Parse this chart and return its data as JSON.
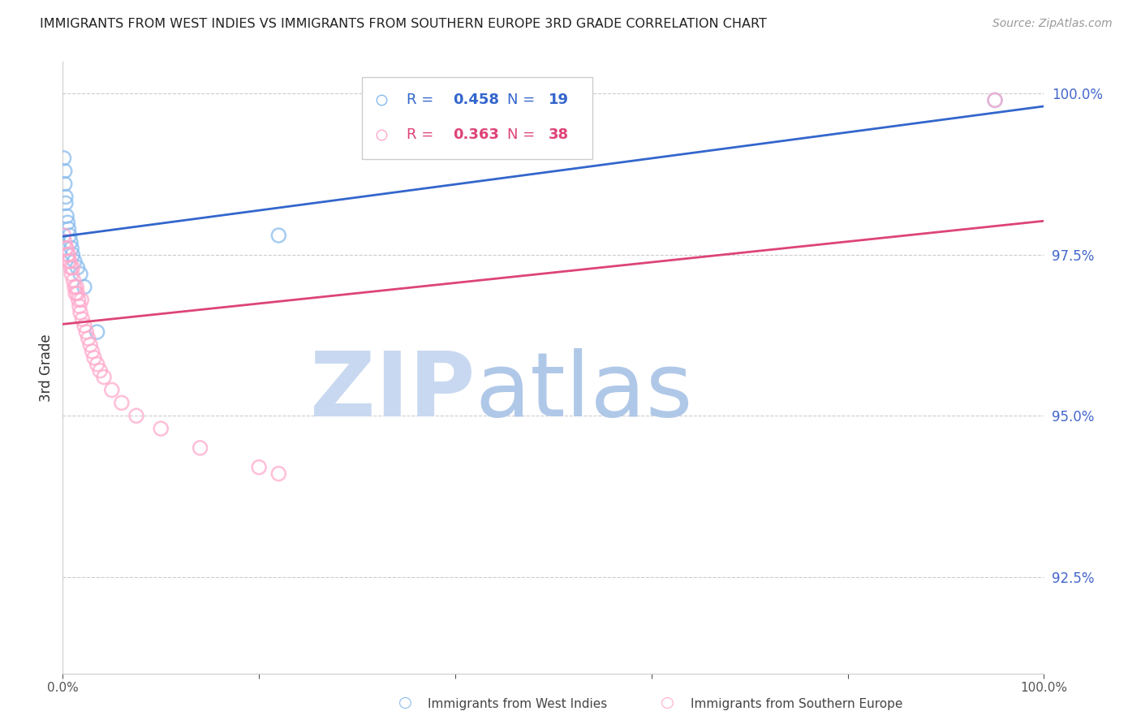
{
  "title": "IMMIGRANTS FROM WEST INDIES VS IMMIGRANTS FROM SOUTHERN EUROPE 3RD GRADE CORRELATION CHART",
  "source": "Source: ZipAtlas.com",
  "ylabel": "3rd Grade",
  "legend_blue_label": "Immigrants from West Indies",
  "legend_pink_label": "Immigrants from Southern Europe",
  "R_blue": 0.458,
  "N_blue": 19,
  "R_pink": 0.363,
  "N_pink": 38,
  "color_blue": "#88BBEE",
  "color_pink": "#FFAACC",
  "color_trend_blue": "#3366CC",
  "color_trend_pink": "#DD4477",
  "color_right_axis": "#4466CC",
  "color_grid": "#CCCCCC",
  "xmin": 0.0,
  "xmax": 1.0,
  "ymin": 0.91,
  "ymax": 1.005,
  "yticks": [
    0.925,
    0.95,
    0.975,
    1.0
  ],
  "ytick_labels": [
    "92.5%",
    "95.0%",
    "97.5%",
    "100.0%"
  ],
  "blue_x": [
    0.001,
    0.002,
    0.002,
    0.003,
    0.003,
    0.004,
    0.005,
    0.006,
    0.007,
    0.008,
    0.009,
    0.01,
    0.012,
    0.015,
    0.018,
    0.022,
    0.035,
    0.22,
    0.95
  ],
  "blue_y": [
    0.99,
    0.988,
    0.986,
    0.984,
    0.983,
    0.981,
    0.98,
    0.979,
    0.978,
    0.977,
    0.976,
    0.975,
    0.974,
    0.973,
    0.972,
    0.97,
    0.963,
    0.978,
    0.999
  ],
  "pink_x": [
    0.001,
    0.002,
    0.003,
    0.004,
    0.005,
    0.006,
    0.006,
    0.007,
    0.008,
    0.009,
    0.01,
    0.011,
    0.012,
    0.013,
    0.014,
    0.015,
    0.016,
    0.017,
    0.018,
    0.019,
    0.02,
    0.022,
    0.024,
    0.026,
    0.028,
    0.03,
    0.032,
    0.035,
    0.038,
    0.042,
    0.05,
    0.06,
    0.075,
    0.1,
    0.14,
    0.2,
    0.22,
    0.95
  ],
  "pink_y": [
    0.978,
    0.977,
    0.976,
    0.976,
    0.975,
    0.974,
    0.975,
    0.974,
    0.973,
    0.972,
    0.973,
    0.971,
    0.97,
    0.969,
    0.97,
    0.969,
    0.968,
    0.967,
    0.966,
    0.968,
    0.965,
    0.964,
    0.963,
    0.962,
    0.961,
    0.96,
    0.959,
    0.958,
    0.957,
    0.956,
    0.954,
    0.952,
    0.95,
    0.948,
    0.945,
    0.942,
    0.941,
    0.999
  ],
  "watermark_zip_color": "#C8D8F0",
  "watermark_atlas_color": "#B0C8E8"
}
